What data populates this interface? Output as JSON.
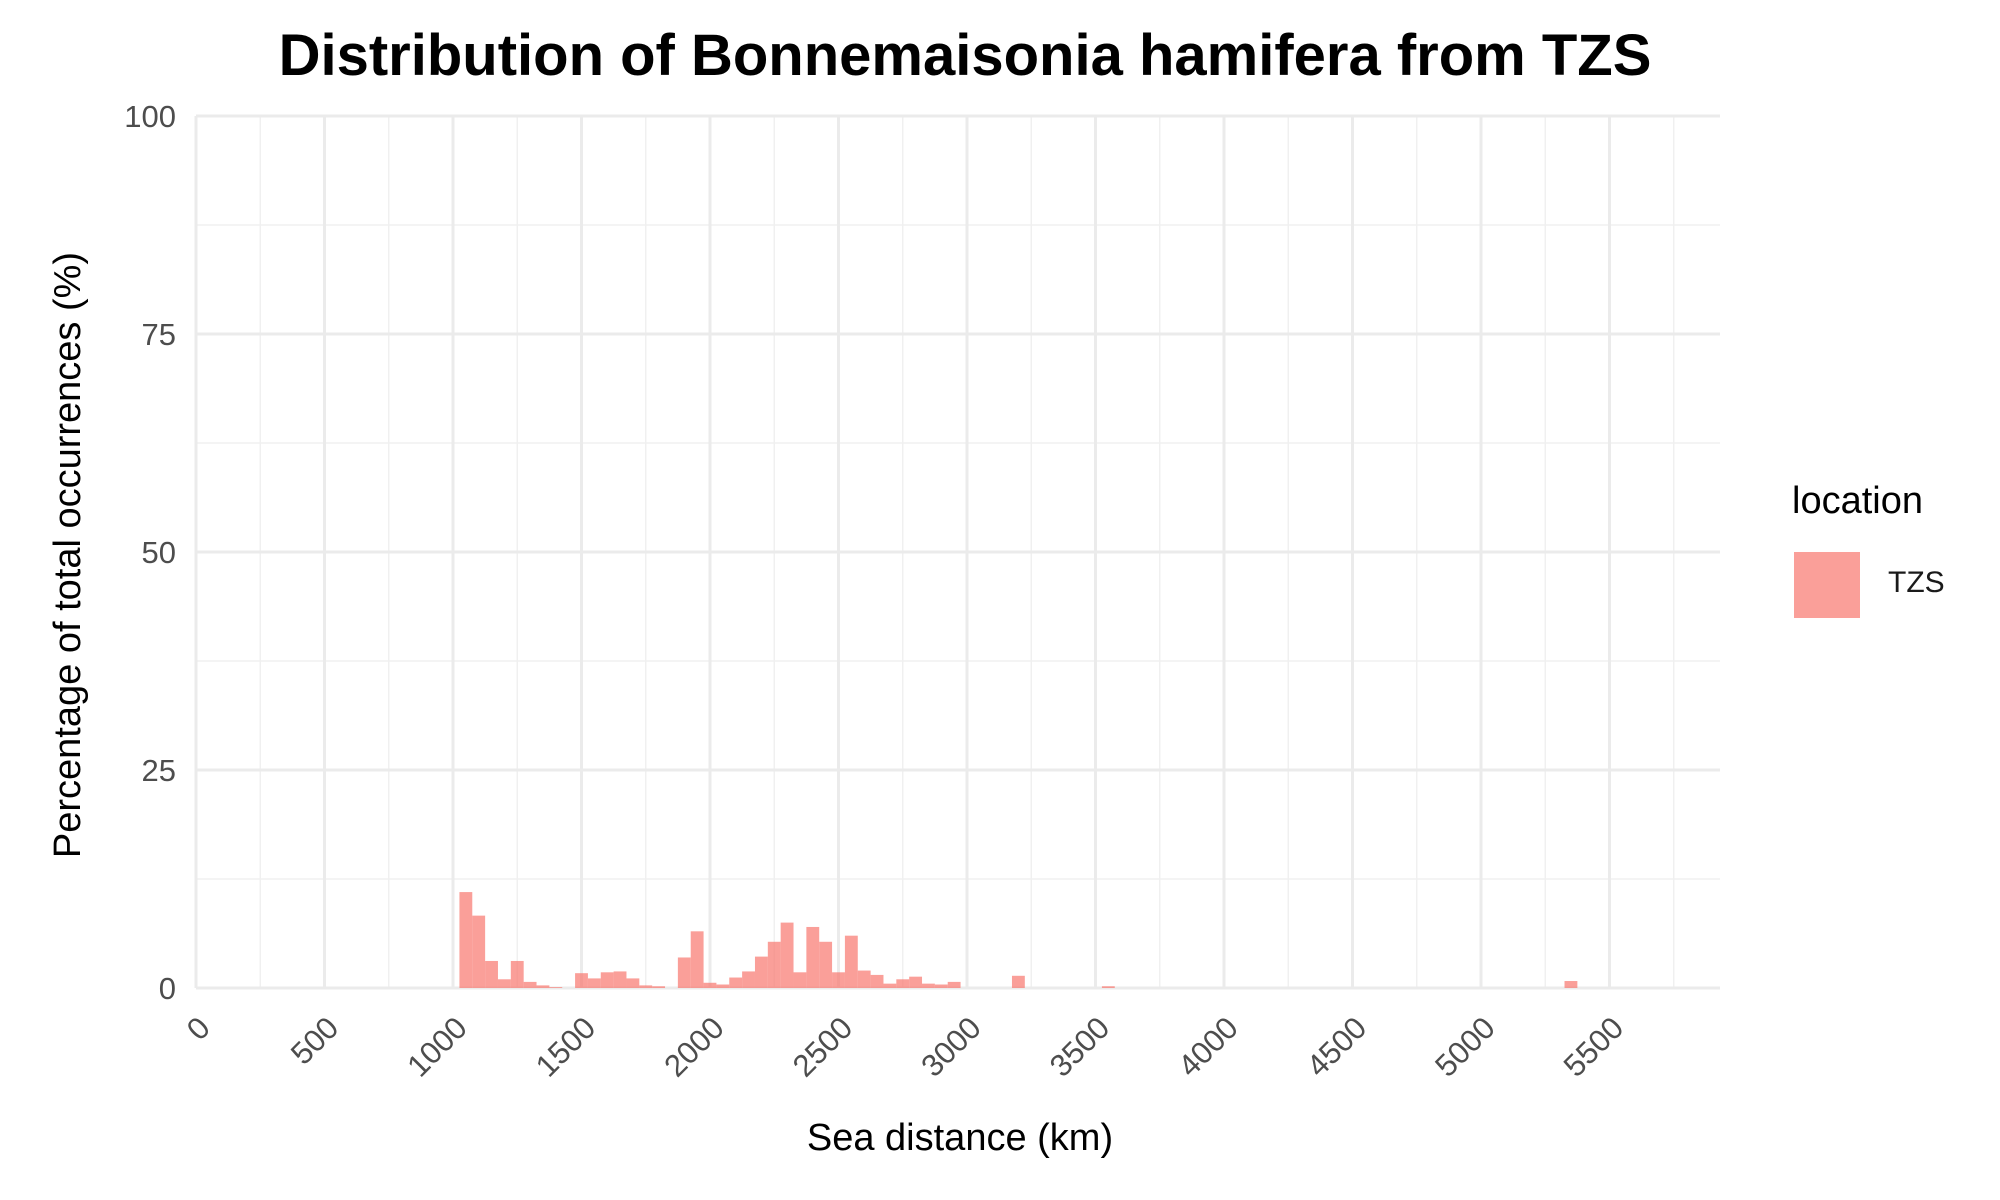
{
  "chart_data": {
    "type": "bar",
    "title": "Distribution of Bonnemaisonia hamifera from TZS",
    "xlabel": "Sea distance (km)",
    "ylabel": "Percentage of total occurrences (%)",
    "xlim": [
      0,
      5930
    ],
    "ylim": [
      0,
      100
    ],
    "xticks": [
      0,
      500,
      1000,
      1500,
      2000,
      2500,
      3000,
      3500,
      4000,
      4500,
      5000,
      5500
    ],
    "yticks": [
      0,
      25,
      50,
      75,
      100
    ],
    "grid": true,
    "bin_width": 50,
    "legend_position": "right",
    "legend": {
      "title": "location",
      "entries": [
        "TZS"
      ]
    },
    "series": [
      {
        "name": "TZS",
        "color": "#F8766D",
        "bins": [
          [
            1050,
            11.0
          ],
          [
            1100,
            8.3
          ],
          [
            1150,
            3.1
          ],
          [
            1200,
            1.0
          ],
          [
            1250,
            3.1
          ],
          [
            1300,
            0.7
          ],
          [
            1350,
            0.3
          ],
          [
            1400,
            0.1
          ],
          [
            1500,
            1.7
          ],
          [
            1550,
            1.1
          ],
          [
            1600,
            1.8
          ],
          [
            1650,
            1.9
          ],
          [
            1700,
            1.1
          ],
          [
            1750,
            0.3
          ],
          [
            1800,
            0.2
          ],
          [
            1900,
            3.5
          ],
          [
            1950,
            6.5
          ],
          [
            2000,
            0.6
          ],
          [
            2050,
            0.4
          ],
          [
            2100,
            1.2
          ],
          [
            2150,
            1.9
          ],
          [
            2200,
            3.6
          ],
          [
            2250,
            5.3
          ],
          [
            2300,
            7.5
          ],
          [
            2350,
            1.8
          ],
          [
            2400,
            7.0
          ],
          [
            2450,
            5.3
          ],
          [
            2500,
            1.8
          ],
          [
            2550,
            6.0
          ],
          [
            2600,
            2.0
          ],
          [
            2650,
            1.5
          ],
          [
            2700,
            0.5
          ],
          [
            2750,
            1.0
          ],
          [
            2800,
            1.3
          ],
          [
            2850,
            0.5
          ],
          [
            2900,
            0.4
          ],
          [
            2950,
            0.7
          ],
          [
            3200,
            1.4
          ],
          [
            3550,
            0.2
          ],
          [
            5350,
            0.8
          ]
        ]
      }
    ]
  }
}
